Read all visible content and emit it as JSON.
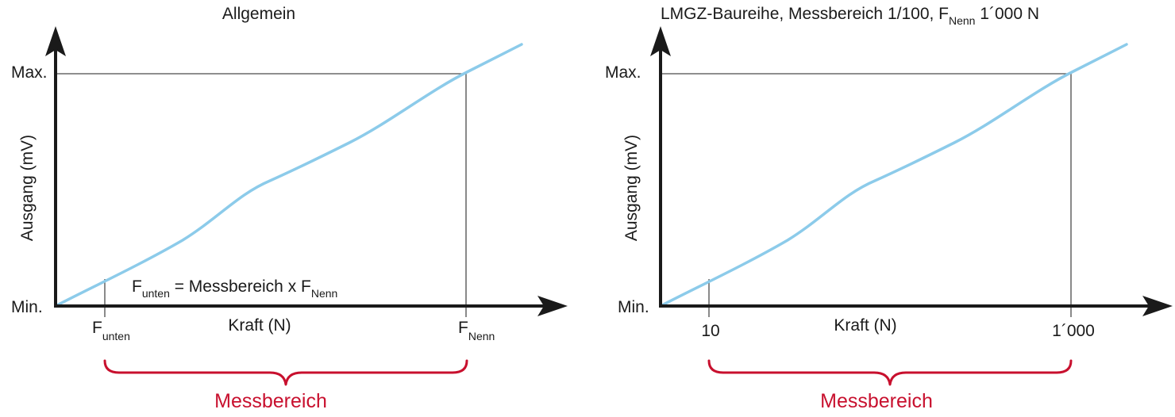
{
  "colors": {
    "axis": "#1a1a1a",
    "curve": "#8ccbea",
    "guide": "#4a4a4a",
    "brace": "#c8102e"
  },
  "left": {
    "title": "Allgemein",
    "y_axis_label": "Ausgang (mV)",
    "x_axis_label": "Kraft (N)",
    "y_max_label": "Max.",
    "y_min_label": "Min.",
    "tick_low": {
      "main": "F",
      "sub": "unten"
    },
    "tick_high": {
      "main": "F",
      "sub": "Nenn"
    },
    "formula": {
      "f1_main": "F",
      "f1_sub": "unten",
      "mid": " = Messbereich x ",
      "f2_main": "F",
      "f2_sub": "Nenn"
    },
    "brace_label": "Messbereich"
  },
  "right": {
    "title": {
      "part1": "LMGZ-Baureihe, Messbereich 1/100, ",
      "f_main": "F",
      "f_sub": "Nenn",
      "part2": " 1´000 N"
    },
    "y_axis_label": "Ausgang (mV)",
    "x_axis_label": "Kraft (N)",
    "y_max_label": "Max.",
    "y_min_label": "Min.",
    "tick_low": "10",
    "tick_high": "1´000",
    "brace_label": "Messbereich"
  }
}
